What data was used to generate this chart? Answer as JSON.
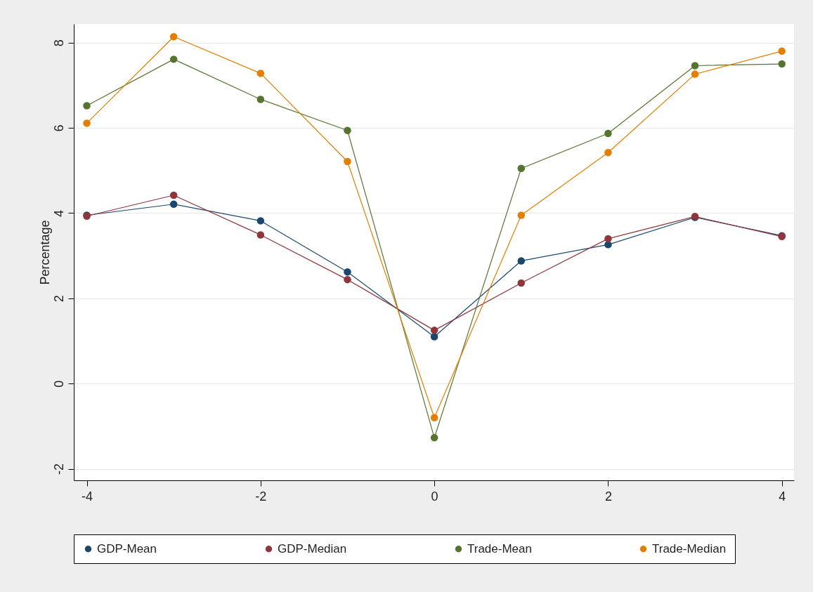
{
  "chart_data": {
    "type": "line",
    "ylabel": "Percentage",
    "x": [
      -4,
      -3,
      -2,
      -1,
      0,
      1,
      2,
      3,
      4
    ],
    "series": [
      {
        "name": "GDP-Mean",
        "color": "#1a476f",
        "values": [
          3.95,
          4.21,
          3.82,
          2.62,
          1.1,
          2.88,
          3.26,
          3.9,
          3.47
        ]
      },
      {
        "name": "GDP-Median",
        "color": "#90353b",
        "values": [
          3.93,
          4.42,
          3.49,
          2.44,
          1.25,
          2.36,
          3.4,
          3.92,
          3.45
        ]
      },
      {
        "name": "Trade-Mean",
        "color": "#55752f",
        "values": [
          6.52,
          7.61,
          6.67,
          5.94,
          -1.27,
          5.05,
          5.87,
          7.46,
          7.5
        ]
      },
      {
        "name": "Trade-Median",
        "color": "#e37e00",
        "values": [
          6.11,
          8.14,
          7.28,
          5.21,
          -0.8,
          3.95,
          5.42,
          7.26,
          7.8
        ]
      }
    ],
    "xlim": [
      -4.15,
      4.14
    ],
    "ylim": [
      -2.27,
      8.44
    ],
    "xticks": [
      -4,
      -2,
      0,
      2,
      4
    ],
    "yticks": [
      -2,
      0,
      2,
      4,
      6,
      8
    ],
    "grid": "y",
    "legend": "bottom",
    "marker": "circle",
    "line_style": "solid"
  }
}
